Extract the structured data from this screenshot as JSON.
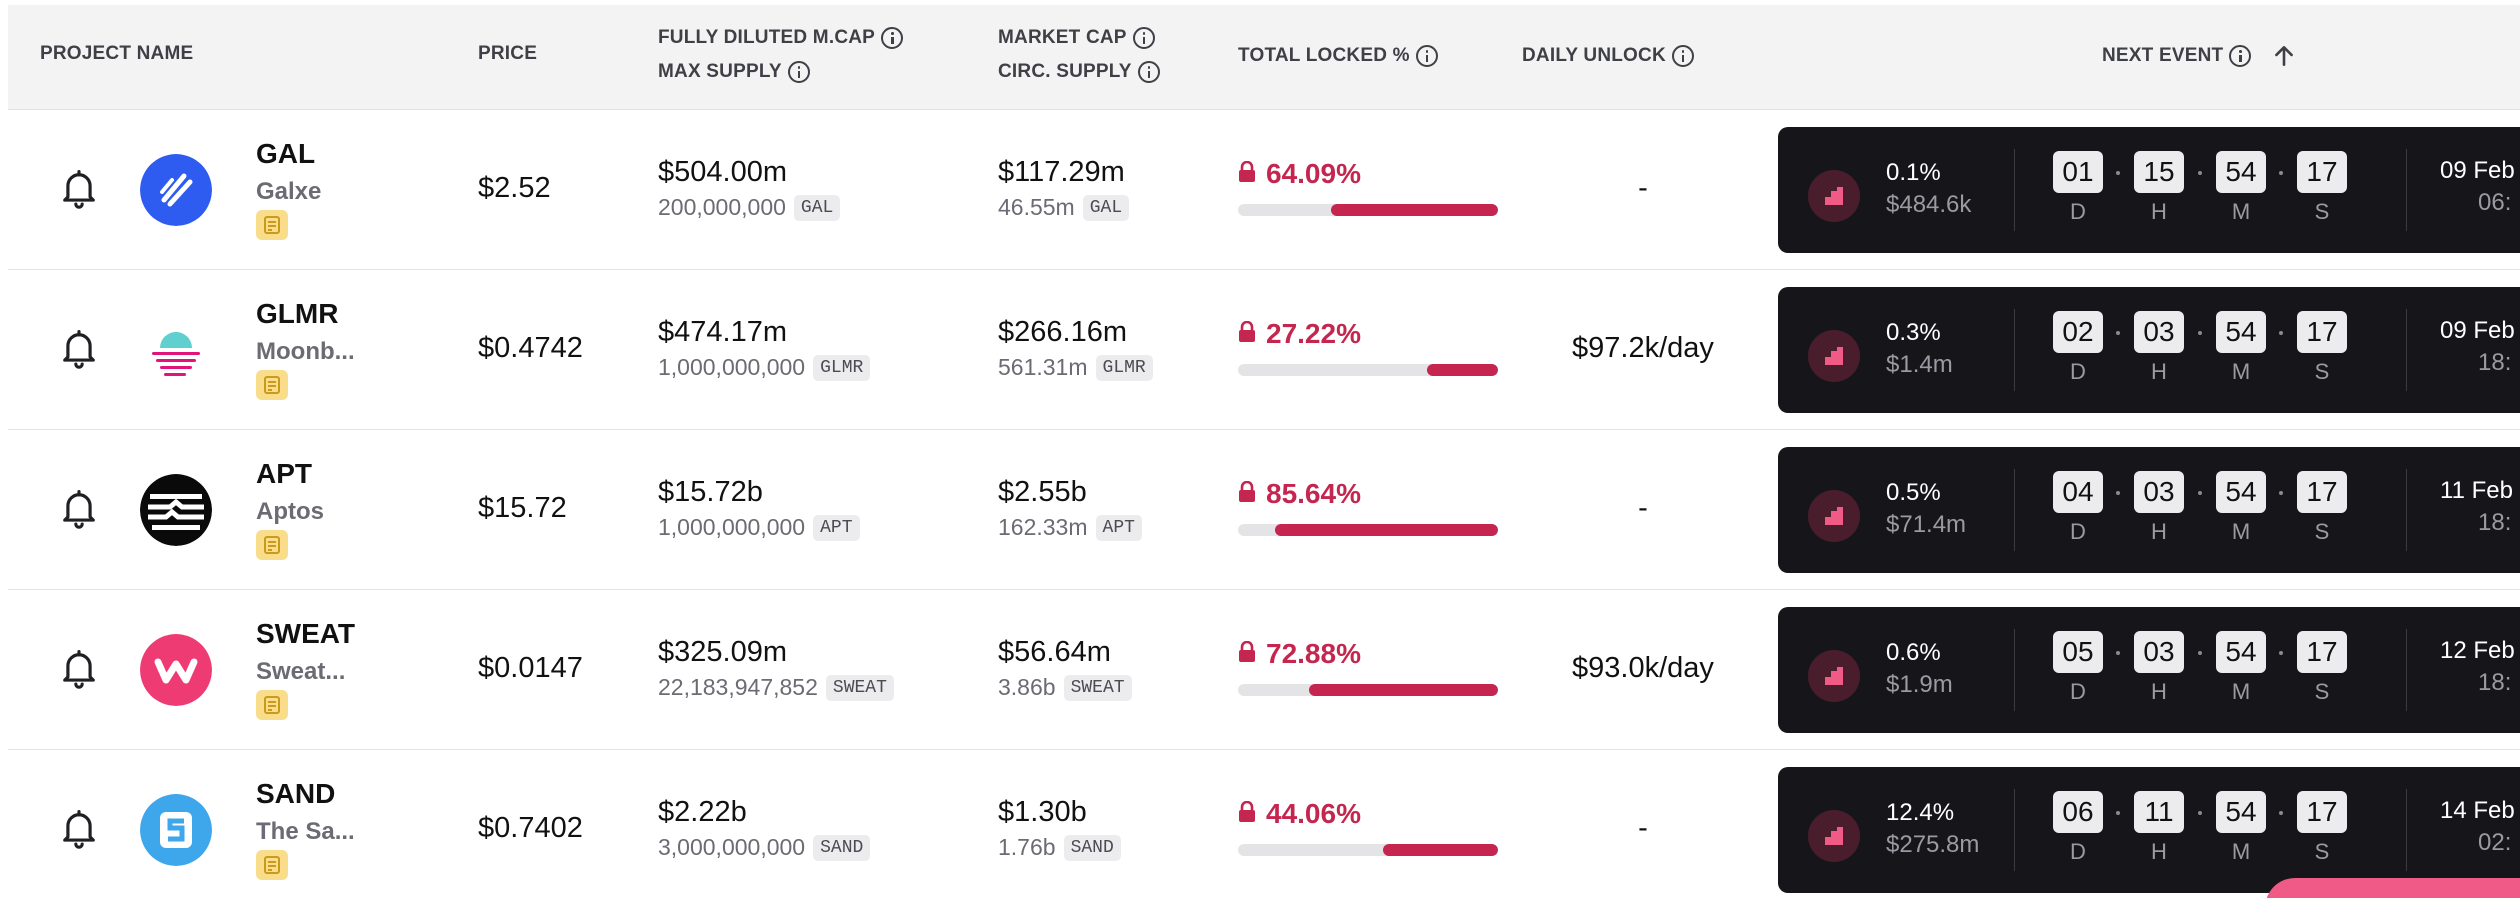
{
  "headers": {
    "project_name": "PROJECT NAME",
    "price": "PRICE",
    "fdv": "FULLY DILUTED M.CAP",
    "max_supply": "MAX SUPPLY",
    "market_cap": "MARKET CAP",
    "circ_supply": "CIRC. SUPPLY",
    "total_locked": "TOTAL LOCKED %",
    "daily_unlock": "DAILY UNLOCK",
    "next_event": "NEXT EVENT"
  },
  "colors": {
    "accent": "#c4264f",
    "event_bg": "#16161a",
    "doc_badge": "#f9dd8a",
    "header_bg": "#f3f3f4"
  },
  "rows": [
    {
      "symbol": "GAL",
      "name": "Galxe",
      "price": "$2.52",
      "fdv": "$504.00m",
      "max_supply": "200,000,000",
      "max_tag": "GAL",
      "mcap": "$117.29m",
      "circ": "46.55m",
      "circ_tag": "GAL",
      "locked": "64.09%",
      "locked_fraction": 0.6409,
      "daily": "-",
      "event_pct": "0.1%",
      "event_value": "$484.6k",
      "cd_d": "01",
      "cd_h": "15",
      "cd_m": "54",
      "cd_s": "17",
      "event_date": "09 Feb",
      "event_time": "06:"
    },
    {
      "symbol": "GLMR",
      "name": "Moonb...",
      "price": "$0.4742",
      "fdv": "$474.17m",
      "max_supply": "1,000,000,000",
      "max_tag": "GLMR",
      "mcap": "$266.16m",
      "circ": "561.31m",
      "circ_tag": "GLMR",
      "locked": "27.22%",
      "locked_fraction": 0.2722,
      "daily": "$97.2k/day",
      "event_pct": "0.3%",
      "event_value": "$1.4m",
      "cd_d": "02",
      "cd_h": "03",
      "cd_m": "54",
      "cd_s": "17",
      "event_date": "09 Feb",
      "event_time": "18:"
    },
    {
      "symbol": "APT",
      "name": "Aptos",
      "price": "$15.72",
      "fdv": "$15.72b",
      "max_supply": "1,000,000,000",
      "max_tag": "APT",
      "mcap": "$2.55b",
      "circ": "162.33m",
      "circ_tag": "APT",
      "locked": "85.64%",
      "locked_fraction": 0.8564,
      "daily": "-",
      "event_pct": "0.5%",
      "event_value": "$71.4m",
      "cd_d": "04",
      "cd_h": "03",
      "cd_m": "54",
      "cd_s": "17",
      "event_date": "11 Feb",
      "event_time": "18:"
    },
    {
      "symbol": "SWEAT",
      "name": "Sweat...",
      "price": "$0.0147",
      "fdv": "$325.09m",
      "max_supply": "22,183,947,852",
      "max_tag": "SWEAT",
      "mcap": "$56.64m",
      "circ": "3.86b",
      "circ_tag": "SWEAT",
      "locked": "72.88%",
      "locked_fraction": 0.7288,
      "daily": "$93.0k/day",
      "event_pct": "0.6%",
      "event_value": "$1.9m",
      "cd_d": "05",
      "cd_h": "03",
      "cd_m": "54",
      "cd_s": "17",
      "event_date": "12 Feb",
      "event_time": "18:"
    },
    {
      "symbol": "SAND",
      "name": "The Sa...",
      "price": "$0.7402",
      "fdv": "$2.22b",
      "max_supply": "3,000,000,000",
      "max_tag": "SAND",
      "mcap": "$1.30b",
      "circ": "1.76b",
      "circ_tag": "SAND",
      "locked": "44.06%",
      "locked_fraction": 0.4406,
      "daily": "-",
      "event_pct": "12.4%",
      "event_value": "$275.8m",
      "cd_d": "06",
      "cd_h": "11",
      "cd_m": "54",
      "cd_s": "17",
      "event_date": "14 Feb",
      "event_time": "02:"
    }
  ],
  "countdown_units": {
    "d": "D",
    "h": "H",
    "m": "M",
    "s": "S"
  },
  "icons": {
    "row_alert": "bell-icon",
    "doc_badge": "document-icon",
    "locked": "lock-icon",
    "event": "unlock-chart-icon",
    "header_info": "info-icon",
    "sort": "arrow-up-icon"
  }
}
